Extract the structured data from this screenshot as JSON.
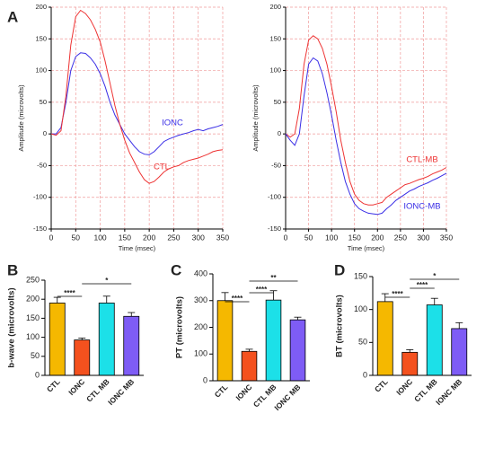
{
  "panel_labels": [
    "A",
    "B",
    "C",
    "D"
  ],
  "chart_data": [
    {
      "type": "line",
      "xlabel": "Time (msec)",
      "ylabel": "Amplitude (microvolts)",
      "x": [
        0,
        10,
        20,
        30,
        40,
        50,
        60,
        70,
        80,
        90,
        100,
        110,
        120,
        130,
        140,
        150,
        160,
        170,
        180,
        190,
        200,
        210,
        220,
        230,
        240,
        250,
        260,
        270,
        280,
        290,
        300,
        310,
        320,
        330,
        340,
        350
      ],
      "xlim": [
        0,
        350
      ],
      "xticks": [
        0,
        50,
        100,
        150,
        200,
        250,
        300,
        350
      ],
      "ylim": [
        -150,
        200
      ],
      "yticks": [
        -150,
        -100,
        -50,
        0,
        50,
        100,
        150,
        200
      ],
      "grid": true,
      "series": [
        {
          "name": "IONC",
          "color": "#3a2ee6",
          "values": [
            0,
            0,
            10,
            50,
            100,
            122,
            128,
            127,
            120,
            110,
            95,
            75,
            50,
            30,
            15,
            0,
            -10,
            -20,
            -28,
            -32,
            -33,
            -28,
            -20,
            -12,
            -8,
            -5,
            -2,
            0,
            2,
            5,
            7,
            5,
            8,
            10,
            12,
            15
          ]
        },
        {
          "name": "CTL",
          "color": "#ee3333",
          "values": [
            0,
            -2,
            5,
            60,
            140,
            185,
            195,
            190,
            180,
            165,
            145,
            115,
            80,
            45,
            15,
            -10,
            -30,
            -45,
            -60,
            -72,
            -78,
            -75,
            -68,
            -60,
            -55,
            -52,
            -50,
            -45,
            -42,
            -40,
            -38,
            -35,
            -32,
            -28,
            -26,
            -25
          ]
        }
      ]
    },
    {
      "type": "line",
      "xlabel": "Time (msec)",
      "ylabel": "Amplitude (microvolts)",
      "x": [
        0,
        10,
        20,
        30,
        40,
        50,
        60,
        70,
        80,
        90,
        100,
        110,
        120,
        130,
        140,
        150,
        160,
        170,
        180,
        190,
        200,
        210,
        220,
        230,
        240,
        250,
        260,
        270,
        280,
        290,
        300,
        310,
        320,
        330,
        340,
        350
      ],
      "xlim": [
        0,
        350
      ],
      "xticks": [
        0,
        50,
        100,
        150,
        200,
        250,
        300,
        350
      ],
      "ylim": [
        -150,
        200
      ],
      "yticks": [
        -150,
        -100,
        -50,
        0,
        50,
        100,
        150,
        200
      ],
      "grid": true,
      "series": [
        {
          "name": "CTL-MB",
          "color": "#ee3333",
          "values": [
            0,
            -5,
            0,
            40,
            110,
            148,
            155,
            150,
            135,
            110,
            75,
            35,
            -10,
            -45,
            -75,
            -95,
            -105,
            -110,
            -112,
            -112,
            -110,
            -108,
            -100,
            -95,
            -90,
            -85,
            -80,
            -78,
            -75,
            -72,
            -70,
            -67,
            -63,
            -60,
            -57,
            -53
          ]
        },
        {
          "name": "IONC-MB",
          "color": "#3a2ee6",
          "values": [
            0,
            -10,
            -18,
            0,
            60,
            110,
            120,
            115,
            95,
            65,
            30,
            -10,
            -45,
            -75,
            -95,
            -110,
            -118,
            -122,
            -125,
            -126,
            -127,
            -125,
            -118,
            -112,
            -105,
            -100,
            -95,
            -90,
            -87,
            -83,
            -80,
            -77,
            -73,
            -70,
            -66,
            -62
          ]
        }
      ]
    },
    {
      "type": "bar",
      "ylabel": "b-wave (microvolts)",
      "categories": [
        "CTL",
        "IONC",
        "CTL MB",
        "IONC MB"
      ],
      "values": [
        190,
        93,
        190,
        155
      ],
      "errors": [
        15,
        5,
        18,
        10
      ],
      "colors": [
        "#f5b800",
        "#f4511e",
        "#1ce0e8",
        "#7e5cf5"
      ],
      "ylim": [
        0,
        250
      ],
      "yticks": [
        0,
        50,
        100,
        150,
        200,
        250
      ],
      "significance": [
        {
          "pair": [
            "CTL",
            "IONC"
          ],
          "label": "****"
        },
        {
          "pair": [
            "IONC",
            "IONC MB"
          ],
          "label": "*"
        }
      ]
    },
    {
      "type": "bar",
      "ylabel": "PT (microvolts)",
      "categories": [
        "CTL",
        "IONC",
        "CTL MB",
        "IONC MB"
      ],
      "values": [
        300,
        110,
        302,
        228
      ],
      "errors": [
        30,
        8,
        35,
        10
      ],
      "colors": [
        "#f5b800",
        "#f4511e",
        "#1ce0e8",
        "#7e5cf5"
      ],
      "ylim": [
        0,
        400
      ],
      "yticks": [
        0,
        100,
        200,
        300,
        400
      ],
      "significance": [
        {
          "pair": [
            "CTL",
            "IONC"
          ],
          "label": "****"
        },
        {
          "pair": [
            "IONC",
            "CTL MB"
          ],
          "label": "****"
        },
        {
          "pair": [
            "IONC",
            "IONC MB"
          ],
          "label": "**"
        }
      ]
    },
    {
      "type": "bar",
      "ylabel": "BT (microvolts)",
      "categories": [
        "CTL",
        "IONC",
        "CTL MB",
        "IONC MB"
      ],
      "values": [
        112,
        35,
        107,
        71
      ],
      "errors": [
        12,
        4,
        10,
        9
      ],
      "colors": [
        "#f5b800",
        "#f4511e",
        "#1ce0e8",
        "#7e5cf5"
      ],
      "ylim": [
        0,
        150
      ],
      "yticks": [
        0,
        50,
        100,
        150
      ],
      "significance": [
        {
          "pair": [
            "CTL",
            "IONC"
          ],
          "label": "****"
        },
        {
          "pair": [
            "IONC",
            "CTL MB"
          ],
          "label": "****"
        },
        {
          "pair": [
            "IONC",
            "IONC MB"
          ],
          "label": "*"
        }
      ]
    }
  ]
}
